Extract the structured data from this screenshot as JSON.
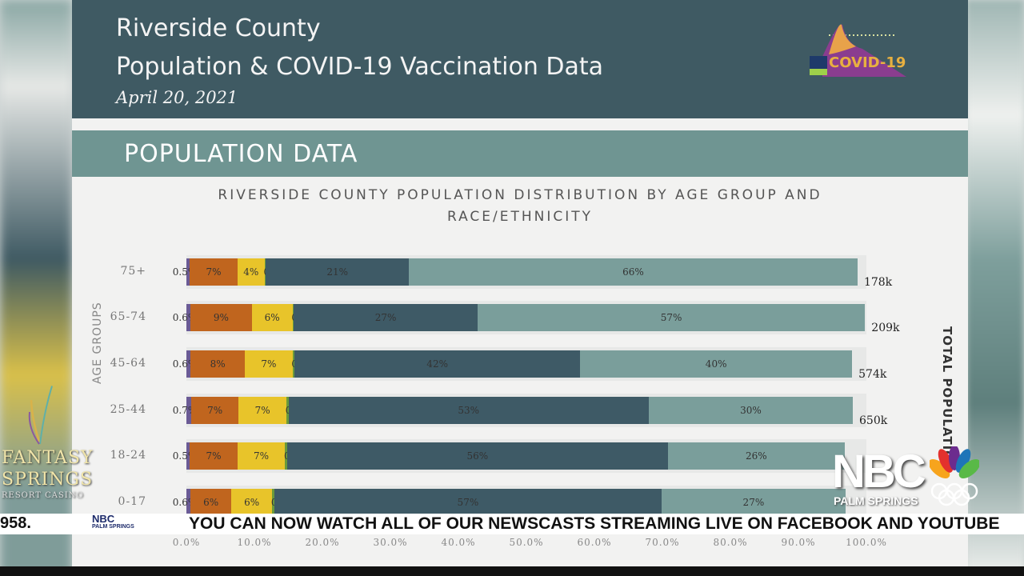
{
  "header": {
    "line1": "Riverside County",
    "line2": "Population & COVID-19 Vaccination Data",
    "date": "April 20, 2021",
    "logo_text": "COVID-19"
  },
  "section": {
    "title": "POPULATION DATA"
  },
  "colors": {
    "header_bg": "#3f5a63",
    "band_bg": "#6f9592",
    "segments": [
      "#6b5b95",
      "#c0651e",
      "#e8c42a",
      "#6a9a3a",
      "#3e5a66",
      "#7a9e9b"
    ]
  },
  "chart_data": {
    "type": "bar",
    "orientation": "horizontal-stacked",
    "title_line1": "RIVERSIDE COUNTY POPULATION DISTRIBUTION BY AGE GROUP AND",
    "title_line2": "RACE/ETHNICITY",
    "ylabel": "AGE GROUPS",
    "right_label": "TOTAL POPULATIO",
    "xlim": [
      0,
      100
    ],
    "xticks": [
      "0.0%",
      "10.0%",
      "20.0%",
      "30.0%",
      "40.0%",
      "50.0%",
      "60.0%",
      "70.0%",
      "80.0%",
      "90.0%",
      "100.0%"
    ],
    "categories": [
      "75+",
      "65-74",
      "45-64",
      "25-44",
      "18-24",
      "0-17"
    ],
    "totals": [
      "178k",
      "209k",
      "574k",
      "650k",
      "",
      ""
    ],
    "rows": [
      [
        0.5,
        7,
        4,
        0.2,
        21,
        66
      ],
      [
        0.6,
        9,
        6,
        0.2,
        27,
        57
      ],
      [
        0.6,
        8,
        7,
        0.3,
        42,
        40
      ],
      [
        0.7,
        7,
        7,
        0.3,
        53,
        30
      ],
      [
        0.5,
        7,
        7,
        0.3,
        56,
        26
      ],
      [
        0.6,
        6,
        6,
        0.3,
        57,
        27
      ]
    ],
    "grid": false
  },
  "overlay": {
    "sponsor_line1": "FANTASY",
    "sponsor_line2": "SPRINGS",
    "sponsor_line3": "RESORT CASINO",
    "station": "NBC",
    "station_sub": "PALM SPRINGS"
  },
  "ticker": {
    "left": "958.",
    "logo": "NBC",
    "logo_sub": "PALM SPRINGS",
    "message": "YOU CAN NOW WATCH ALL OF OUR NEWSCASTS STREAMING LIVE ON FACEBOOK AND YOUTUBE"
  }
}
